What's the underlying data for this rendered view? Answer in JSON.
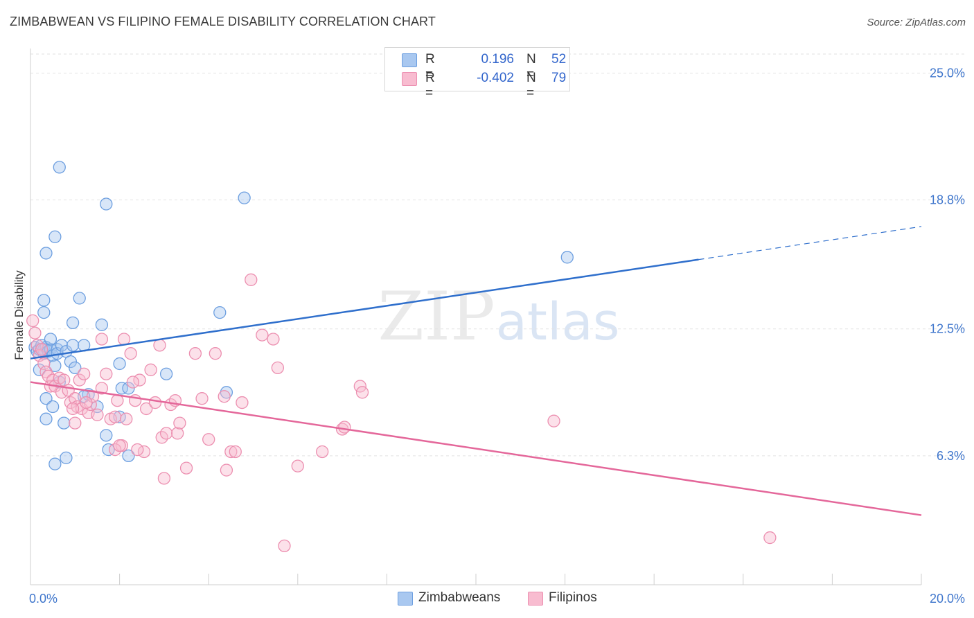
{
  "title": "ZIMBABWEAN VS FILIPINO FEMALE DISABILITY CORRELATION CHART",
  "source": "Source: ZipAtlas.com",
  "watermark": {
    "zip": "ZIP",
    "atlas": "atlas"
  },
  "legend": {
    "rows": [
      {
        "r_label": "R =",
        "r_value": "0.196",
        "n_label": "N =",
        "n_value": "52"
      },
      {
        "r_label": "R =",
        "r_value": "-0.402",
        "n_label": "N =",
        "n_value": "79"
      }
    ]
  },
  "colors": {
    "blue_fill": "#a9c8f0",
    "blue_stroke": "#6d9fe0",
    "blue_line": "#2f6fcc",
    "pink_fill": "#f8bcd0",
    "pink_stroke": "#ec8fb0",
    "pink_line": "#e4679a",
    "tick_text": "#3f76cc",
    "grid": "#e2e2e2"
  },
  "chart_data": {
    "type": "scatter",
    "title": "ZIMBABWEAN VS FILIPINO FEMALE DISABILITY CORRELATION CHART",
    "xlabel": "",
    "ylabel": "Female Disability",
    "xlim": [
      0,
      20
    ],
    "ylim": [
      0,
      26.2
    ],
    "x_tick_labels": [
      {
        "value": 0,
        "label": "0.0%"
      },
      {
        "value": 20,
        "label": "20.0%"
      }
    ],
    "y_tick_labels": [
      {
        "value": 25.0,
        "label": "25.0%"
      },
      {
        "value": 18.8,
        "label": "18.8%"
      },
      {
        "value": 12.5,
        "label": "12.5%"
      },
      {
        "value": 6.3,
        "label": "6.3%"
      }
    ],
    "series": [
      {
        "name": "Zimbabweans",
        "r": 0.196,
        "n": 52,
        "trend": {
          "x0": 0,
          "y0": 11.05,
          "x_solid_end": 15.0,
          "x1": 20,
          "y1": 17.5
        },
        "points": [
          [
            0.1,
            11.6
          ],
          [
            0.15,
            11.4
          ],
          [
            0.2,
            11.5
          ],
          [
            0.2,
            10.5
          ],
          [
            0.25,
            11.7
          ],
          [
            0.3,
            11.5
          ],
          [
            0.3,
            11.3
          ],
          [
            0.35,
            11.6
          ],
          [
            0.4,
            11.4
          ],
          [
            0.45,
            11.5
          ],
          [
            0.5,
            11.2
          ],
          [
            0.6,
            11.5
          ],
          [
            0.3,
            13.3
          ],
          [
            0.3,
            13.9
          ],
          [
            0.35,
            16.2
          ],
          [
            0.55,
            17.0
          ],
          [
            0.65,
            20.4
          ],
          [
            1.1,
            14.0
          ],
          [
            0.95,
            12.8
          ],
          [
            0.45,
            12.0
          ],
          [
            0.6,
            11.3
          ],
          [
            0.7,
            11.7
          ],
          [
            0.8,
            11.4
          ],
          [
            0.9,
            10.9
          ],
          [
            0.95,
            11.7
          ],
          [
            1.2,
            11.7
          ],
          [
            1.0,
            10.6
          ],
          [
            0.55,
            10.7
          ],
          [
            0.65,
            9.9
          ],
          [
            0.35,
            9.1
          ],
          [
            0.5,
            8.7
          ],
          [
            0.35,
            8.1
          ],
          [
            0.75,
            7.9
          ],
          [
            1.7,
            18.6
          ],
          [
            1.6,
            12.7
          ],
          [
            2.0,
            10.8
          ],
          [
            2.05,
            9.6
          ],
          [
            2.2,
            9.6
          ],
          [
            1.5,
            8.7
          ],
          [
            2.0,
            8.2
          ],
          [
            1.7,
            7.3
          ],
          [
            1.75,
            6.6
          ],
          [
            2.2,
            6.3
          ],
          [
            0.55,
            5.9
          ],
          [
            0.8,
            6.2
          ],
          [
            1.3,
            9.3
          ],
          [
            3.05,
            10.3
          ],
          [
            4.25,
            13.3
          ],
          [
            4.4,
            9.4
          ],
          [
            4.8,
            18.9
          ],
          [
            12.05,
            16.0
          ],
          [
            1.2,
            9.2
          ]
        ]
      },
      {
        "name": "Filipinos",
        "r": -0.402,
        "n": 79,
        "trend": {
          "x0": 0,
          "y0": 9.9,
          "x_solid_end": 20,
          "x1": 20,
          "y1": 3.4
        },
        "points": [
          [
            0.05,
            12.9
          ],
          [
            0.1,
            12.3
          ],
          [
            0.15,
            11.7
          ],
          [
            0.2,
            11.2
          ],
          [
            0.25,
            11.5
          ],
          [
            0.3,
            10.8
          ],
          [
            0.35,
            10.4
          ],
          [
            0.4,
            10.2
          ],
          [
            0.45,
            9.7
          ],
          [
            0.5,
            10.0
          ],
          [
            0.55,
            9.7
          ],
          [
            0.65,
            10.1
          ],
          [
            0.7,
            9.4
          ],
          [
            0.75,
            10.0
          ],
          [
            0.85,
            9.5
          ],
          [
            0.9,
            8.9
          ],
          [
            1.0,
            9.1
          ],
          [
            1.05,
            8.7
          ],
          [
            1.1,
            10.0
          ],
          [
            1.15,
            8.6
          ],
          [
            1.2,
            10.3
          ],
          [
            1.3,
            8.4
          ],
          [
            1.35,
            8.8
          ],
          [
            1.4,
            9.2
          ],
          [
            1.5,
            8.3
          ],
          [
            1.6,
            9.6
          ],
          [
            1.7,
            10.3
          ],
          [
            1.8,
            8.1
          ],
          [
            1.9,
            8.2
          ],
          [
            1.95,
            9.0
          ],
          [
            2.05,
            6.8
          ],
          [
            2.15,
            8.1
          ],
          [
            2.25,
            11.3
          ],
          [
            2.35,
            9.0
          ],
          [
            2.45,
            10.0
          ],
          [
            2.55,
            6.5
          ],
          [
            2.6,
            8.6
          ],
          [
            2.7,
            10.5
          ],
          [
            2.8,
            8.9
          ],
          [
            2.9,
            11.7
          ],
          [
            2.95,
            7.2
          ],
          [
            3.05,
            7.4
          ],
          [
            3.15,
            8.8
          ],
          [
            3.25,
            9.0
          ],
          [
            3.3,
            7.4
          ],
          [
            3.35,
            7.9
          ],
          [
            2.3,
            9.9
          ],
          [
            3.7,
            11.3
          ],
          [
            3.85,
            9.1
          ],
          [
            4.0,
            7.1
          ],
          [
            4.15,
            11.3
          ],
          [
            4.35,
            9.2
          ],
          [
            4.5,
            6.5
          ],
          [
            4.6,
            6.5
          ],
          [
            4.75,
            8.9
          ],
          [
            4.95,
            14.9
          ],
          [
            5.2,
            12.2
          ],
          [
            5.45,
            12.0
          ],
          [
            5.55,
            10.6
          ],
          [
            6.0,
            5.8
          ],
          [
            6.55,
            6.5
          ],
          [
            7.0,
            7.6
          ],
          [
            7.05,
            7.7
          ],
          [
            7.4,
            9.7
          ],
          [
            7.45,
            9.4
          ],
          [
            2.1,
            12.0
          ],
          [
            1.6,
            12.0
          ],
          [
            2.4,
            6.6
          ],
          [
            1.9,
            6.6
          ],
          [
            3.0,
            5.2
          ],
          [
            3.5,
            5.7
          ],
          [
            4.4,
            5.6
          ],
          [
            5.7,
            1.9
          ],
          [
            11.75,
            8.0
          ],
          [
            16.6,
            2.3
          ],
          [
            1.25,
            8.9
          ],
          [
            0.95,
            8.6
          ],
          [
            2.0,
            6.8
          ],
          [
            1.0,
            7.9
          ]
        ]
      }
    ]
  },
  "bottom_legend": [
    "Zimbabweans",
    "Filipinos"
  ]
}
